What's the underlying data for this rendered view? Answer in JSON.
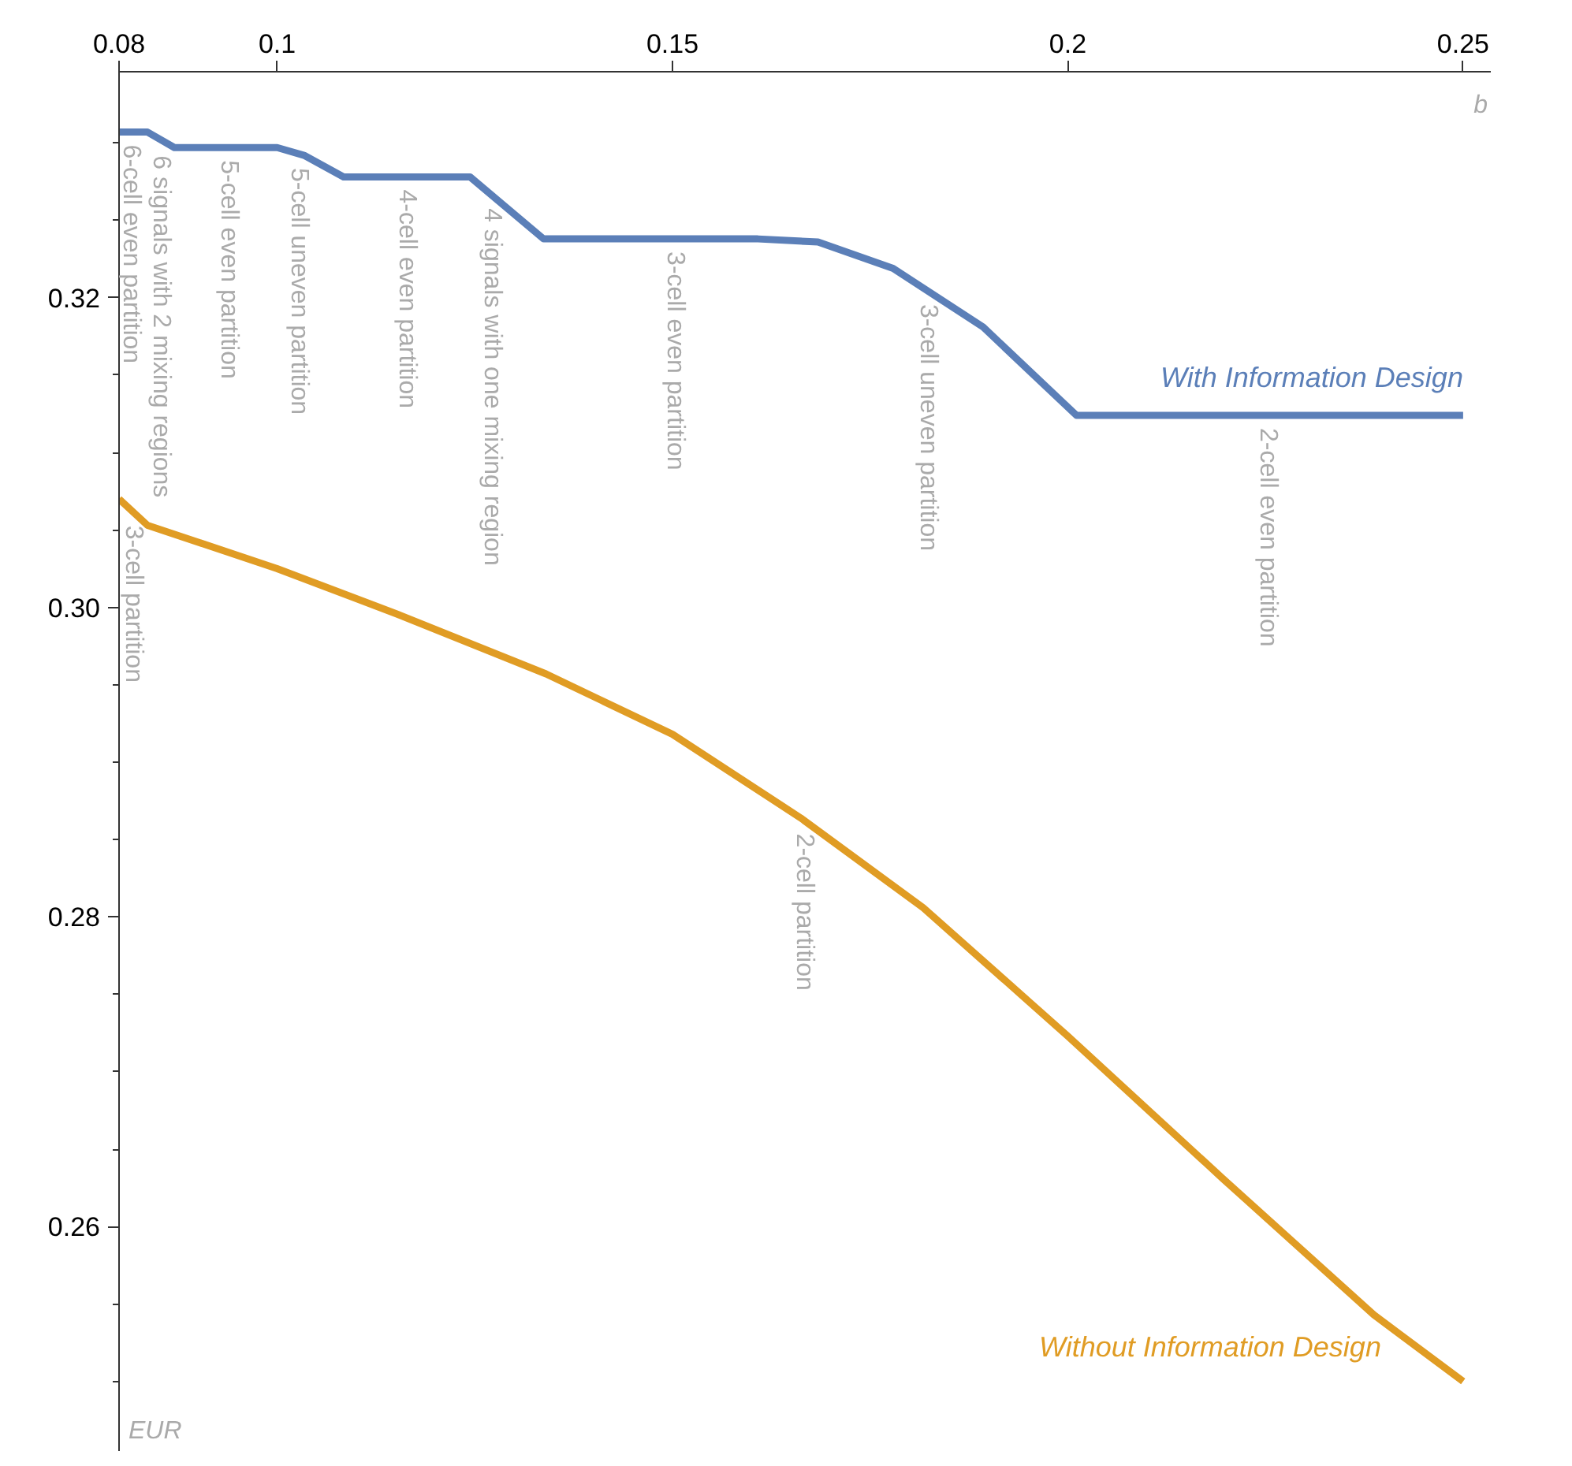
{
  "chart_data": {
    "type": "line",
    "xlabel": "b",
    "ylabel": "EUR",
    "series": [
      {
        "name": "With Information Design",
        "color": "#5b7fb8",
        "x": [
          0.08,
          0.0836,
          0.087,
          0.1,
          0.1034,
          0.1084,
          0.1244,
          0.1337,
          0.1608,
          0.1684,
          0.1779,
          0.1893,
          0.2011,
          0.25
        ],
        "values": [
          0.3307,
          0.3307,
          0.3297,
          0.3297,
          0.3292,
          0.3278,
          0.3278,
          0.3238,
          0.3238,
          0.3236,
          0.3219,
          0.3181,
          0.3124,
          0.3124
        ]
      },
      {
        "name": "Without Information Design",
        "color": "#e09c24",
        "x": [
          0.08,
          0.0836,
          0.1,
          0.115,
          0.134,
          0.15,
          0.1662,
          0.1817,
          0.2,
          0.2196,
          0.2387,
          0.25
        ],
        "values": [
          0.307,
          0.3053,
          0.3025,
          0.2996,
          0.2957,
          0.2918,
          0.2864,
          0.2806,
          0.2723,
          0.2631,
          0.2543,
          0.25
        ]
      }
    ],
    "annotations": [
      {
        "text": "6-cell even partition",
        "x": 0.0815,
        "y": 0.3307
      },
      {
        "text": "6 signals with 2 mixing regions",
        "x": 0.0853,
        "y": 0.33
      },
      {
        "text": "5-cell even partition",
        "x": 0.0939,
        "y": 0.3297
      },
      {
        "text": "5-cell uneven partition",
        "x": 0.1027,
        "y": 0.3292
      },
      {
        "text": "4-cell even partition",
        "x": 0.1164,
        "y": 0.3278
      },
      {
        "text": "4 signals with one mixing region",
        "x": 0.1272,
        "y": 0.3266
      },
      {
        "text": "3-cell even partition",
        "x": 0.1503,
        "y": 0.3238
      },
      {
        "text": "3-cell uneven partition",
        "x": 0.1823,
        "y": 0.3204
      },
      {
        "text": "2-cell even partition",
        "x": 0.2253,
        "y": 0.3124
      },
      {
        "text": "3-cell partition",
        "x": 0.0818,
        "y": 0.3061
      },
      {
        "text": "2-cell partition",
        "x": 0.1667,
        "y": 0.2862
      }
    ],
    "xlim": [
      0.08,
      0.2535
    ],
    "ylim": [
      0.2455,
      0.3346
    ],
    "xticks": [
      0.08,
      0.1,
      0.15,
      0.2,
      0.25
    ],
    "yticks": [
      {
        "value": 0.25,
        "label": null
      },
      {
        "value": 0.255,
        "label": null
      },
      0.26,
      {
        "value": 0.265,
        "label": null
      },
      {
        "value": 0.27,
        "label": null
      },
      {
        "value": 0.275,
        "label": null
      },
      0.28,
      {
        "value": 0.285,
        "label": null
      },
      {
        "value": 0.29,
        "label": null
      },
      {
        "value": 0.295,
        "label": null
      },
      {
        "value": 0.3,
        "label": "0.30"
      },
      {
        "value": 0.305,
        "label": null
      },
      {
        "value": 0.31,
        "label": null
      },
      {
        "value": 0.315,
        "label": null
      },
      0.32,
      {
        "value": 0.325,
        "label": null
      },
      {
        "value": 0.33,
        "label": null
      }
    ],
    "grid": false,
    "legend": false,
    "line_style": "solid",
    "marker": "none"
  }
}
